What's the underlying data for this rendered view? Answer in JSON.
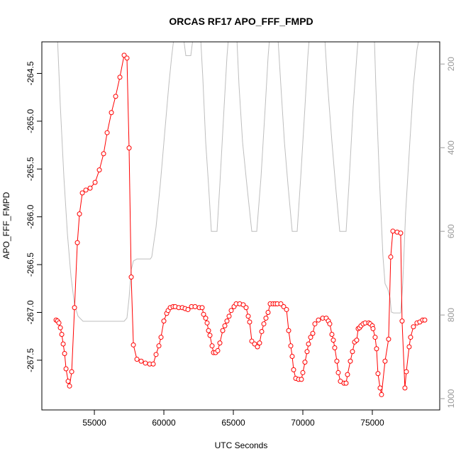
{
  "chart_data": {
    "type": "line",
    "title": "ORCAS RF17 APO_FFF_FMPD",
    "xlabel": "UTC Seconds",
    "ylabel": "APO_FFF_FMPD",
    "xlim": [
      51220,
      79850
    ],
    "xticks": [
      55000,
      60000,
      65000,
      70000,
      75000
    ],
    "ylim": [
      -268.02,
      -264.17
    ],
    "yticks": [
      {
        "value": -267.5,
        "label": "-267.5"
      },
      {
        "value": -267,
        "label": "-267.0"
      },
      {
        "value": -266.5,
        "label": "-266.5"
      },
      {
        "value": -266,
        "label": "-266.0"
      },
      {
        "value": -265.5,
        "label": "-265.5"
      },
      {
        "value": -265,
        "label": "-265.0"
      },
      {
        "value": -264.5,
        "label": "-264.5"
      }
    ],
    "y2lim": [
      1027,
      147
    ],
    "y2ticks": [
      200,
      400,
      600,
      800,
      1000
    ],
    "series": [
      {
        "color": "#ff0000",
        "markers": true,
        "x": [
          52244,
          52346,
          52448,
          52551,
          52653,
          52755,
          52857,
          52959,
          53112,
          53214,
          53367,
          53571,
          53775,
          53928,
          54132,
          54387,
          54693,
          55051,
          55357,
          55663,
          55918,
          56224,
          56530,
          56836,
          57142,
          57346,
          57499,
          57652,
          57806,
          58061,
          58367,
          58673,
          58979,
          59234,
          59438,
          59642,
          59795,
          59999,
          60204,
          60306,
          60459,
          60663,
          60816,
          61071,
          61326,
          61530,
          61734,
          61989,
          62244,
          62550,
          62755,
          62857,
          63010,
          63112,
          63214,
          63316,
          63469,
          63571,
          63724,
          63877,
          64030,
          64234,
          64387,
          64540,
          64693,
          64846,
          65050,
          65203,
          65458,
          65713,
          65918,
          66071,
          66173,
          66326,
          66530,
          66734,
          66887,
          67040,
          67193,
          67346,
          67499,
          67652,
          67857,
          68010,
          68163,
          68418,
          68622,
          68826,
          68979,
          69132,
          69234,
          69336,
          69489,
          69693,
          69897,
          69999,
          70152,
          70305,
          70407,
          70561,
          70714,
          70867,
          71122,
          71428,
          71683,
          71836,
          71938,
          72091,
          72193,
          72295,
          72448,
          72550,
          72703,
          72958,
          73112,
          73214,
          73418,
          73571,
          73724,
          73877,
          73979,
          74081,
          74183,
          74336,
          74489,
          74744,
          74846,
          74999,
          75050,
          75203,
          75305,
          75407,
          75560,
          75662,
          75917,
          76172,
          76325,
          76478,
          76785,
          77040,
          77142,
          77346,
          77448,
          77652,
          77754,
          77958,
          78213,
          78417,
          78621,
          78774
        ],
        "values": [
          -267.08,
          -267.09,
          -267.11,
          -267.16,
          -267.23,
          -267.33,
          -267.43,
          -267.59,
          -267.72,
          -267.77,
          -267.62,
          -266.95,
          -266.27,
          -265.97,
          -265.75,
          -265.72,
          -265.7,
          -265.64,
          -265.51,
          -265.34,
          -265.12,
          -264.91,
          -264.74,
          -264.54,
          -264.31,
          -264.34,
          -265.28,
          -266.63,
          -267.34,
          -267.49,
          -267.51,
          -267.53,
          -267.54,
          -267.54,
          -267.44,
          -267.35,
          -267.26,
          -267.09,
          -267.01,
          -266.98,
          -266.95,
          -266.94,
          -266.94,
          -266.95,
          -266.95,
          -266.96,
          -266.97,
          -266.94,
          -266.94,
          -266.95,
          -266.95,
          -267.02,
          -267.06,
          -267.11,
          -267.19,
          -267.24,
          -267.35,
          -267.42,
          -267.42,
          -267.4,
          -267.32,
          -267.19,
          -267.14,
          -267.09,
          -267.04,
          -266.98,
          -266.94,
          -266.91,
          -266.91,
          -266.92,
          -266.95,
          -267.04,
          -267.1,
          -267.3,
          -267.33,
          -267.36,
          -267.32,
          -267.2,
          -267.12,
          -267.06,
          -267,
          -266.91,
          -266.91,
          -266.91,
          -266.91,
          -266.91,
          -266.94,
          -266.97,
          -267.19,
          -267.35,
          -267.46,
          -267.6,
          -267.69,
          -267.7,
          -267.7,
          -267.63,
          -267.52,
          -267.41,
          -267.33,
          -267.26,
          -267.22,
          -267.12,
          -267.08,
          -267.06,
          -267.06,
          -267.09,
          -267.12,
          -267.23,
          -267.29,
          -267.37,
          -267.51,
          -267.63,
          -267.72,
          -267.74,
          -267.74,
          -267.65,
          -267.51,
          -267.41,
          -267.31,
          -267.29,
          -267.17,
          -267.16,
          -267.14,
          -267.12,
          -267.11,
          -267.11,
          -267.12,
          -267.14,
          -267.17,
          -267.26,
          -267.38,
          -267.64,
          -267.79,
          -267.86,
          -267.51,
          -267.28,
          -266.42,
          -266.15,
          -266.16,
          -266.17,
          -267.09,
          -267.79,
          -267.62,
          -267.36,
          -267.26,
          -267.15,
          -267.11,
          -267.1,
          -267.08,
          -267.08
        ]
      },
      {
        "color": "#bebebe",
        "axis": "y2",
        "markers": false,
        "x": [
          52346,
          52551,
          52806,
          53061,
          53316,
          53571,
          53826,
          54183,
          57142,
          57346,
          57499,
          57652,
          57806,
          58061,
          59030,
          59132,
          59438,
          59744,
          60050,
          60357,
          60561,
          60714,
          61428,
          61581,
          61938,
          62091,
          62652,
          62806,
          63010,
          63214,
          63418,
          63826,
          64030,
          64336,
          64540,
          64642,
          65254,
          65407,
          65662,
          65969,
          66326,
          66683,
          66989,
          67295,
          67499,
          67601,
          68214,
          68418,
          68673,
          68928,
          69234,
          69591,
          69846,
          70152,
          70356,
          70458,
          71581,
          71785,
          72091,
          72346,
          72652,
          73112,
          73316,
          73622,
          73877,
          73979,
          75152,
          75254,
          75509,
          75764,
          75917,
          76121,
          76274,
          76376,
          76530,
          77040,
          77193,
          77397,
          77703,
          77958,
          78213,
          78366
        ],
        "values": [
          140,
          302,
          471,
          607,
          708,
          776,
          803,
          815,
          815,
          807,
          759,
          692,
          671,
          666,
          666,
          661,
          590,
          488,
          369,
          251,
          183,
          140,
          140,
          180,
          180,
          140,
          140,
          234,
          386,
          488,
          600,
          600,
          488,
          302,
          183,
          140,
          140,
          251,
          386,
          488,
          600,
          600,
          471,
          302,
          183,
          140,
          140,
          251,
          386,
          488,
          600,
          600,
          471,
          302,
          183,
          140,
          140,
          251,
          386,
          488,
          600,
          600,
          488,
          302,
          183,
          140,
          140,
          251,
          471,
          658,
          725,
          739,
          759,
          793,
          795,
          795,
          725,
          556,
          386,
          251,
          166,
          140
        ]
      }
    ]
  }
}
